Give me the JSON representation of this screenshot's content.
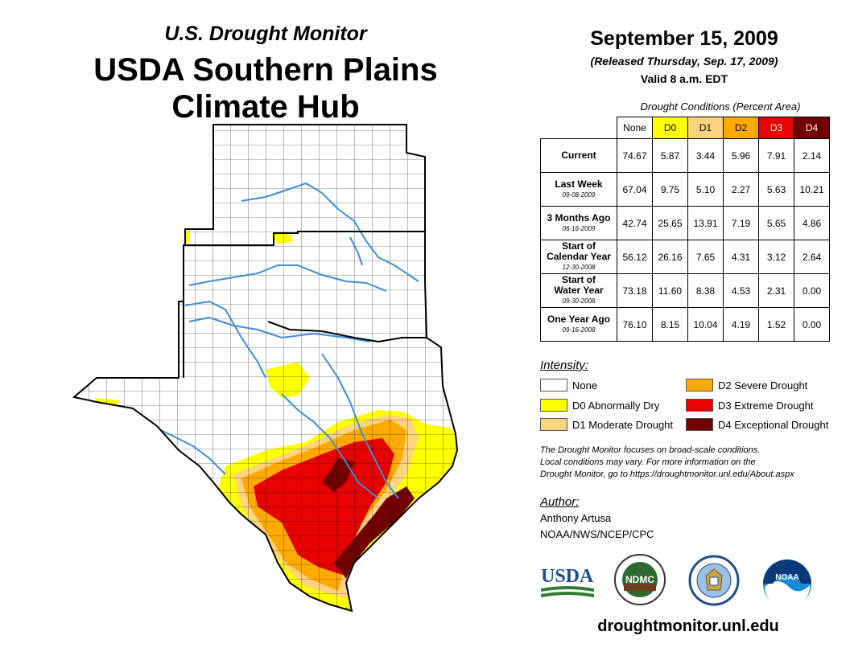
{
  "header": {
    "subtitle": "U.S. Drought Monitor",
    "title_line1": "USDA Southern Plains",
    "title_line2": "Climate Hub"
  },
  "info": {
    "date": "September 15, 2009",
    "released": "(Released Thursday, Sep. 17, 2009)",
    "valid": "Valid 8 a.m. EDT"
  },
  "table": {
    "caption": "Drought Conditions (Percent Area)",
    "columns": [
      "None",
      "D0",
      "D1",
      "D2",
      "D3",
      "D4"
    ],
    "rows": [
      {
        "label_line1": "Current",
        "label_line2": "",
        "date": "",
        "values": [
          "74.67",
          "5.87",
          "3.44",
          "5.96",
          "7.91",
          "2.14"
        ]
      },
      {
        "label_line1": "Last Week",
        "label_line2": "",
        "date": "09-08-2009",
        "values": [
          "67.04",
          "9.75",
          "5.10",
          "2.27",
          "5.63",
          "10.21"
        ]
      },
      {
        "label_line1": "3 Months Ago",
        "label_line2": "",
        "date": "06-16-2009",
        "values": [
          "42.74",
          "25.65",
          "13.91",
          "7.19",
          "5.65",
          "4.86"
        ]
      },
      {
        "label_line1": "Start of",
        "label_line2": "Calendar Year",
        "date": "12-30-2008",
        "values": [
          "56.12",
          "26.16",
          "7.65",
          "4.31",
          "3.12",
          "2.64"
        ]
      },
      {
        "label_line1": "Start of",
        "label_line2": "Water Year",
        "date": "09-30-2008",
        "values": [
          "73.18",
          "11.60",
          "8.38",
          "4.53",
          "2.31",
          "0.00"
        ]
      },
      {
        "label_line1": "One Year Ago",
        "label_line2": "",
        "date": "09-16-2008",
        "values": [
          "76.10",
          "8.15",
          "10.04",
          "4.19",
          "1.52",
          "0.00"
        ]
      }
    ]
  },
  "legend": {
    "title": "Intensity:",
    "items": [
      {
        "label": "None",
        "color": "#ffffff"
      },
      {
        "label": "D0 Abnormally Dry",
        "color": "#ffff00"
      },
      {
        "label": "D1 Moderate Drought",
        "color": "#fcd37f"
      },
      {
        "label": "D2 Severe Drought",
        "color": "#ffaa00"
      },
      {
        "label": "D3 Extreme Drought",
        "color": "#e60000"
      },
      {
        "label": "D4 Exceptional Drought",
        "color": "#730000"
      }
    ]
  },
  "note": {
    "line1": "The Drought Monitor focuses on broad-scale conditions.",
    "line2": "Local conditions may vary. For more information on the",
    "line3": "Drought Monitor, go to https://droughtmonitor.unl.edu/About.aspx"
  },
  "author": {
    "title": "Author:",
    "name": "Anthony Artusa",
    "org": "NOAA/NWS/NCEP/CPC"
  },
  "logos": {
    "usda": "USDA",
    "ndmc": "NDMC",
    "noaa": "NOAA"
  },
  "footer": {
    "url": "droughtmonitor.unl.edu"
  },
  "map": {
    "region": [
      "Kansas",
      "Oklahoma",
      "Texas"
    ],
    "colors": {
      "none": "#ffffff",
      "d0": "#ffff00",
      "d1": "#fcd37f",
      "d2": "#ffaa00",
      "d3": "#e60000",
      "d4": "#730000",
      "rivers": "#3d8fd6",
      "boundary": "#000000"
    }
  }
}
